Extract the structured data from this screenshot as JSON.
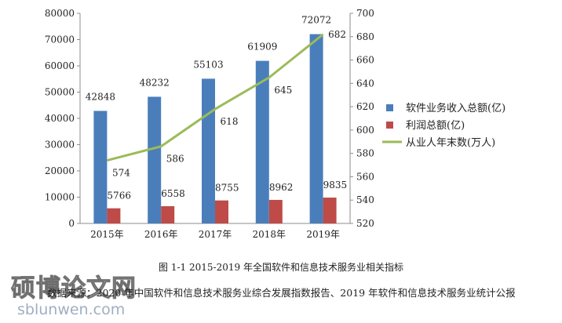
{
  "chart_data": {
    "type": "bar",
    "categories": [
      "2015年",
      "2016年",
      "2017年",
      "2018年",
      "2019年"
    ],
    "series": [
      {
        "name": "软件业务收入总额(亿)",
        "kind": "bar",
        "axis": "left",
        "color": "#4a7ebb",
        "values": [
          42848,
          48232,
          55103,
          61909,
          72072
        ]
      },
      {
        "name": "利润总额(亿)",
        "kind": "bar",
        "axis": "left",
        "color": "#be4b48",
        "values": [
          5766,
          6558,
          8755,
          8962,
          9835
        ]
      },
      {
        "name": "从业人年末数(万人)",
        "kind": "line",
        "axis": "right",
        "color": "#9bbb59",
        "values": [
          574,
          586,
          618,
          645,
          682
        ]
      }
    ],
    "y_left": {
      "min": 0,
      "max": 80000,
      "step": 10000,
      "ticks": [
        "0",
        "10000",
        "20000",
        "30000",
        "40000",
        "50000",
        "60000",
        "70000",
        "80000"
      ]
    },
    "y_right": {
      "min": 520,
      "max": 700,
      "step": 20,
      "ticks": [
        "520",
        "540",
        "560",
        "580",
        "600",
        "620",
        "640",
        "660",
        "680",
        "700"
      ]
    },
    "legend_position": "right",
    "title": "",
    "xlabel": "",
    "ylabel": ""
  },
  "caption": "图 1-1 2015-2019 年全国软件和信息技术服务业相关指标",
  "source_text": "数据来源：2020 年中国软件和信息技术服务业综合发展指数报告、2019 年软件和信息技术服务业统计公报",
  "watermark": {
    "title": "硕博论文网",
    "url": "sblunwen.com"
  }
}
